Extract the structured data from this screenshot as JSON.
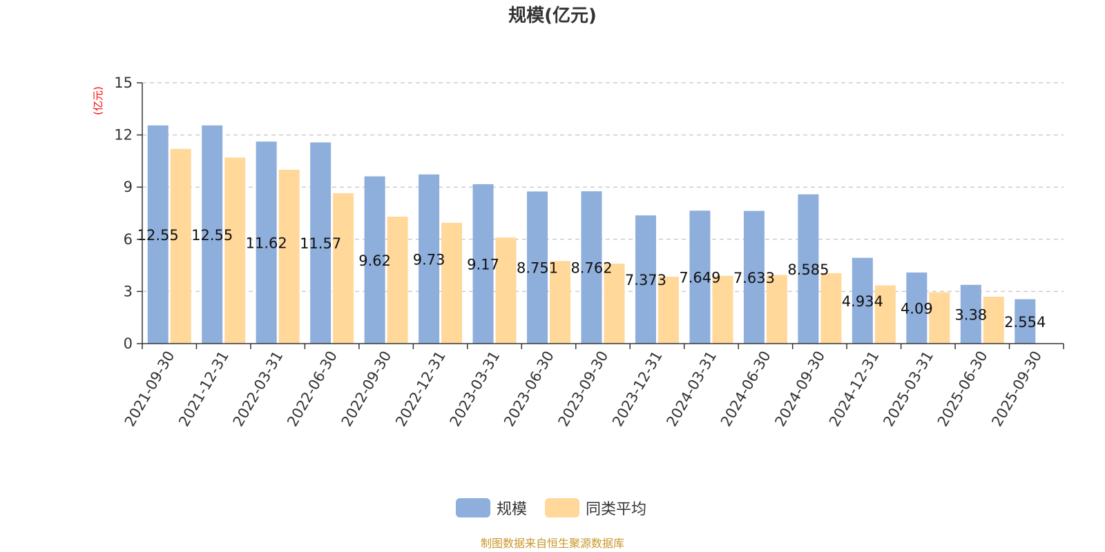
{
  "title": "规模(亿元)",
  "source_note": "制图数据来自恒生聚源数据库",
  "chart_data": {
    "type": "bar",
    "title": "规模(亿元)",
    "ylabel": "(亿元)",
    "ylim": [
      0,
      15
    ],
    "yticks": [
      0,
      3,
      6,
      9,
      12,
      15
    ],
    "grid": true,
    "legend_position": "bottom-center",
    "categories": [
      "2021-09-30",
      "2021-12-31",
      "2022-03-31",
      "2022-06-30",
      "2022-09-30",
      "2022-12-31",
      "2023-03-31",
      "2023-06-30",
      "2023-09-30",
      "2023-12-31",
      "2024-03-31",
      "2024-06-30",
      "2024-09-30",
      "2024-12-31",
      "2025-03-31",
      "2025-06-30",
      "2025-09-30"
    ],
    "series": [
      {
        "name": "规模",
        "color": "#8eaedb",
        "values": [
          12.55,
          12.55,
          11.62,
          11.57,
          9.62,
          9.73,
          9.17,
          8.751,
          8.762,
          7.373,
          7.649,
          7.633,
          8.585,
          4.934,
          4.09,
          3.38,
          2.554
        ],
        "labels": [
          "12.55",
          "12.55",
          "11.62",
          "11.57",
          "9.62",
          "9.73",
          "9.17",
          "8.751",
          "8.762",
          "7.373",
          "7.649",
          "7.633",
          "8.585",
          "4.934",
          "4.09",
          "3.38",
          "2.554"
        ]
      },
      {
        "name": "同类平均",
        "color": "#ffd89a",
        "values": [
          11.2,
          10.7,
          10.0,
          8.65,
          7.3,
          6.95,
          6.1,
          4.75,
          4.6,
          3.85,
          3.9,
          3.95,
          4.05,
          3.35,
          2.95,
          2.7,
          null
        ]
      }
    ]
  }
}
